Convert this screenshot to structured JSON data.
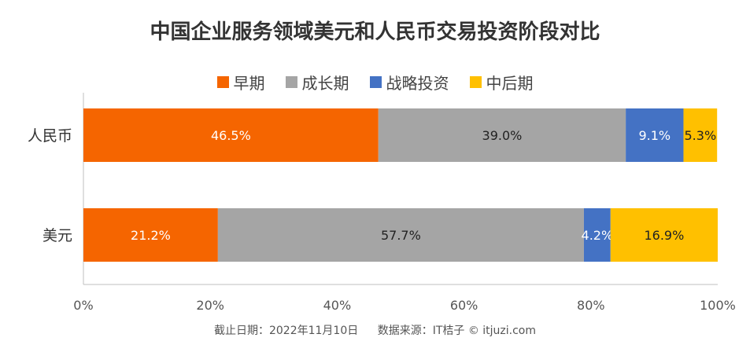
{
  "chart_data": {
    "type": "bar",
    "orientation": "horizontal",
    "stacked": true,
    "title": "中国企业服务领域美元和人民币交易投资阶段对比",
    "categories": [
      "人民币",
      "美元"
    ],
    "series": [
      {
        "name": "早期",
        "color": "#F56500",
        "values": [
          46.5,
          21.2
        ],
        "labels": [
          "46.5%",
          "21.2%"
        ],
        "label_color": "#ffffff"
      },
      {
        "name": "成长期",
        "color": "#A5A5A5",
        "values": [
          39.0,
          57.7
        ],
        "labels": [
          "39.0%",
          "57.7%"
        ],
        "label_color": "#222222"
      },
      {
        "name": "战略投资",
        "color": "#4472C4",
        "values": [
          9.1,
          4.2
        ],
        "labels": [
          "9.1%",
          "4.2%"
        ],
        "label_color": "#ffffff"
      },
      {
        "name": "中后期",
        "color": "#FFC000",
        "values": [
          5.3,
          16.9
        ],
        "labels": [
          "5.3%",
          "16.9%"
        ],
        "label_color": "#222222"
      }
    ],
    "xlim": [
      0,
      100
    ],
    "x_ticks": [
      "0%",
      "20%",
      "40%",
      "60%",
      "80%",
      "100%"
    ],
    "legend_position": "top",
    "grid": false
  },
  "footer": {
    "date_text": "截止日期：2022年11月10日",
    "source_text": "数据来源：IT桔子 © itjuzi.com"
  }
}
